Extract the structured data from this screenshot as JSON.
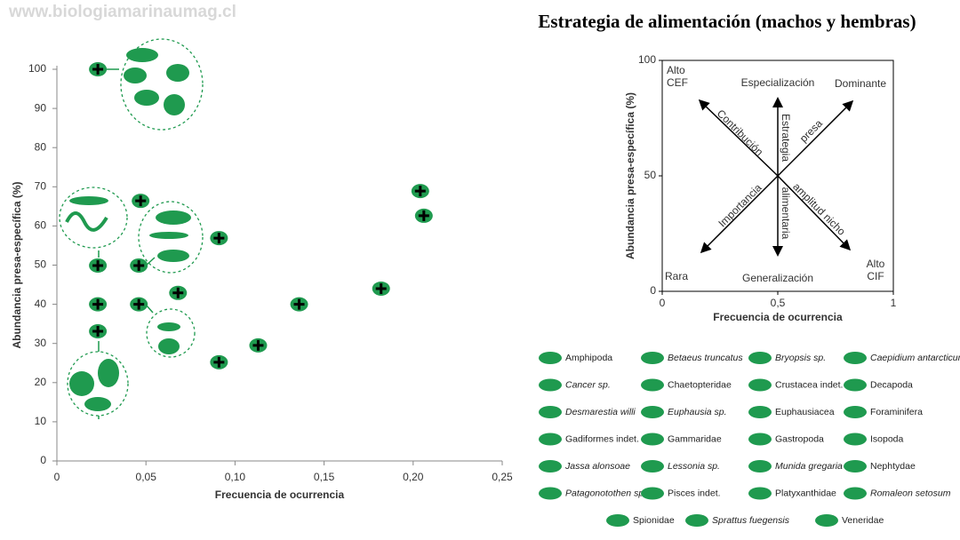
{
  "watermark": "www.biologiamarinaumag.cl",
  "title": "Estrategia de alimentación (machos y hembras)",
  "chart_data": [
    {
      "type": "scatter",
      "xlabel": "Frecuencia de ocurrencia",
      "ylabel": "Abundancia presa-específica (%)",
      "x": [
        0.023,
        0.047,
        0.023,
        0.046,
        0.023,
        0.046,
        0.023,
        0.068,
        0.091,
        0.091,
        0.113,
        0.136,
        0.182,
        0.204,
        0.206
      ],
      "values": [
        100,
        66.4,
        49.9,
        49.9,
        40,
        40,
        33.1,
        42.9,
        56.9,
        25.2,
        29.5,
        40,
        44,
        68.9,
        62.6
      ],
      "color": "#1f9a4f",
      "xlim": [
        0,
        0.25
      ],
      "ylim": [
        0,
        100
      ],
      "xticks": [
        0,
        {
          "value": 0.05,
          "label": "0,05"
        },
        {
          "value": 0.1,
          "label": "0,10"
        },
        {
          "value": 0.15,
          "label": "0,15"
        },
        {
          "value": 0.2,
          "label": "0,20"
        },
        {
          "value": 0.25,
          "label": "0,25"
        }
      ],
      "yticks": [
        0,
        10,
        20,
        30,
        40,
        50,
        60,
        70,
        80,
        90,
        100
      ]
    },
    {
      "type": "quadrant",
      "xlabel": "Frecuencia de ocurrencia",
      "ylabel": "Abundancia presa-específica (%)",
      "xlim": [
        0,
        1
      ],
      "ylim": [
        0,
        100
      ],
      "xticks": [
        0,
        {
          "value": 0.5,
          "label": "0,5"
        },
        1
      ],
      "yticks": [
        0,
        50,
        100
      ],
      "annotations": [
        [
          "Alto",
          "CEF"
        ],
        "Especialización",
        "Dominante",
        "Rara",
        "Generalización",
        [
          "Alto",
          "CIF"
        ],
        "Contribución",
        "Estrategia",
        "presa",
        "Importancia",
        "alimentaria",
        "amplitud nicho"
      ]
    }
  ],
  "legend": {
    "items": [
      {
        "name": "Amphipoda"
      },
      {
        "name": "Betaeus truncatus",
        "italic": true
      },
      {
        "name": "Bryopsis sp.",
        "italic": true
      },
      {
        "name": "Caepidium antarcticum",
        "italic": true
      },
      {
        "name": "Cancer sp.",
        "italic": true
      },
      {
        "name": "Chaetopteridae"
      },
      {
        "name": "Crustacea indet."
      },
      {
        "name": "Decapoda"
      },
      {
        "name": "Desmarestia willi",
        "italic": true
      },
      {
        "name": "Euphausia sp.",
        "italic": true
      },
      {
        "name": "Euphausiacea"
      },
      {
        "name": "Foraminifera"
      },
      {
        "name": "Gadiformes indet."
      },
      {
        "name": "Gammaridae"
      },
      {
        "name": "Gastropoda"
      },
      {
        "name": "Isopoda"
      },
      {
        "name": "Jassa alonsoae",
        "italic": true
      },
      {
        "name": "Lessonia sp.",
        "italic": true
      },
      {
        "name": "Munida gregaria",
        "italic": true
      },
      {
        "name": "Nephtydae"
      },
      {
        "name": "Patagonotothen sp.",
        "italic": true
      },
      {
        "name": "Pisces indet."
      },
      {
        "name": "Platyxanthidae"
      },
      {
        "name": "Romaleon setosum",
        "italic": true
      },
      {
        "name": "Spionidae"
      },
      {
        "name": "Sprattus fuegensis",
        "italic": true
      },
      {
        "name": "Veneridae"
      }
    ]
  }
}
